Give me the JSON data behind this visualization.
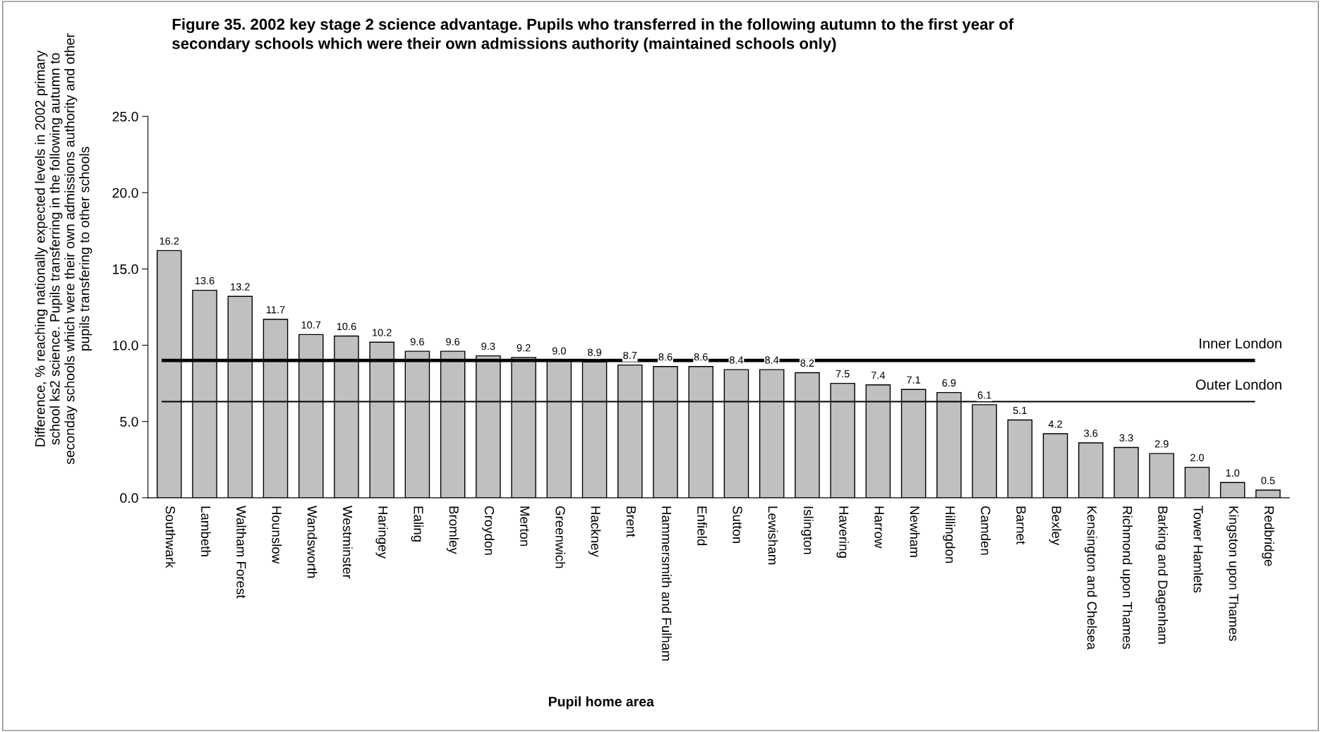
{
  "chart_data": {
    "type": "bar",
    "title": "Figure 35. 2002 key stage 2 science advantage. Pupils who transferred in the following autumn to the first year of\nsecondary schools which were their own admissions authority (maintained schools only)",
    "xlabel": "Pupil home area",
    "ylabel": "Difference, % reaching nationally expected levels in 2002 primary\nschool ks2 science. Pupils transferring in the following autumn to\nseconday schools which were their own admissions authority and other\npupils transfering to other schools",
    "categories": [
      "Southwark",
      "Lambeth",
      "Waltham Forest",
      "Hounslow",
      "Wandsworth",
      "Westminster",
      "Haringey",
      "Ealing",
      "Bromley",
      "Croydon",
      "Merton",
      "Greenwich",
      "Hackney",
      "Brent",
      "Hammersmith and Fulham",
      "Enfield",
      "Sutton",
      "Lewisham",
      "Islington",
      "Havering",
      "Harrow",
      "Newham",
      "Hillingdon",
      "Camden",
      "Barnet",
      "Bexley",
      "Kensington and Chelsea",
      "Richmond upon Thames",
      "Barking and Dagenham",
      "Tower Hamlets",
      "Kingston upon Thames",
      "Redbridge"
    ],
    "values": [
      16.2,
      13.6,
      13.2,
      11.7,
      10.7,
      10.6,
      10.2,
      9.6,
      9.6,
      9.3,
      9.2,
      9.0,
      8.9,
      8.7,
      8.6,
      8.6,
      8.4,
      8.4,
      8.2,
      7.5,
      7.4,
      7.1,
      6.9,
      6.1,
      5.1,
      4.2,
      3.6,
      3.3,
      2.9,
      2.0,
      1.0,
      0.5
    ],
    "value_labels": [
      "16.2",
      "13.6",
      "13.2",
      "11.7",
      "10.7",
      "10.6",
      "10.2",
      "9.6",
      "9.6",
      "9.3",
      "9.2",
      "9.0",
      "8.9",
      "8.7",
      "8.6",
      "8.6",
      "8.4",
      "8.4",
      "8.2",
      "7.5",
      "7.4",
      "7.1",
      "6.9",
      "6.1",
      "5.1",
      "4.2",
      "3.6",
      "3.3",
      "2.9",
      "2.0",
      "1.0",
      "0.5"
    ],
    "color": "#c0c0c0",
    "ylim": [
      0,
      25
    ],
    "yticks": [
      {
        "value": 0,
        "label": "0.0"
      },
      {
        "value": 5,
        "label": "5.0"
      },
      {
        "value": 10,
        "label": "10.0"
      },
      {
        "value": 15,
        "label": "15.0"
      },
      {
        "value": 20,
        "label": "20.0"
      },
      {
        "value": 25,
        "label": "25.0"
      }
    ],
    "ref_lines": [
      {
        "axis": "y",
        "value": 9.0,
        "label": "Inner London",
        "color": "#000000"
      },
      {
        "axis": "y",
        "value": 6.3,
        "label": "Outer London",
        "color": "#000000"
      }
    ],
    "grid": false,
    "legend": false
  }
}
